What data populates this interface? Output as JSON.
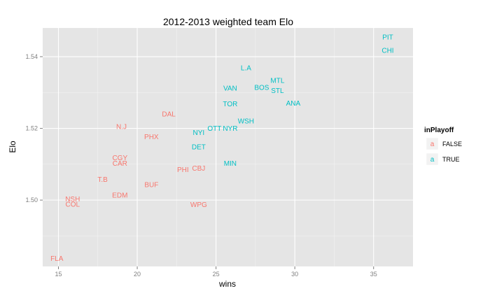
{
  "chart_data": {
    "type": "scatter",
    "title": "2012-2013 weighted team Elo",
    "xlabel": "wins",
    "ylabel": "Elo",
    "xlim": [
      14,
      37.5
    ],
    "ylim": [
      1.4815,
      1.548
    ],
    "x_ticks": [
      15,
      20,
      25,
      30,
      35
    ],
    "x_tick_labels": [
      "15",
      "20",
      "25",
      "30",
      "35"
    ],
    "y_ticks": [
      1.5,
      1.52,
      1.54
    ],
    "y_tick_labels": [
      "1.50",
      "1.52",
      "1.54"
    ],
    "grid": true,
    "legend": {
      "title": "inPlayoff",
      "position": "right",
      "key_glyph": "a",
      "entries": [
        {
          "label": "FALSE",
          "color": "#F8766D"
        },
        {
          "label": "TRUE",
          "color": "#00BFC4"
        }
      ]
    },
    "series": [
      {
        "name": "FALSE",
        "color": "#F8766D",
        "points": [
          {
            "label": "FLA",
            "x": 14.9,
            "y": 1.4837
          },
          {
            "label": "NSH",
            "x": 15.9,
            "y": 1.5003
          },
          {
            "label": "COL",
            "x": 15.9,
            "y": 1.4989
          },
          {
            "label": "T.B",
            "x": 17.8,
            "y": 1.5058
          },
          {
            "label": "EDM",
            "x": 18.9,
            "y": 1.5014
          },
          {
            "label": "CGY",
            "x": 18.9,
            "y": 1.5118
          },
          {
            "label": "CAR",
            "x": 18.9,
            "y": 1.5103
          },
          {
            "label": "N.J",
            "x": 19.0,
            "y": 1.5205
          },
          {
            "label": "BUF",
            "x": 20.9,
            "y": 1.5043
          },
          {
            "label": "PHX",
            "x": 20.9,
            "y": 1.5177
          },
          {
            "label": "DAL",
            "x": 22.0,
            "y": 1.524
          },
          {
            "label": "PHI",
            "x": 22.9,
            "y": 1.5085
          },
          {
            "label": "CBJ",
            "x": 23.9,
            "y": 1.5089
          },
          {
            "label": "WPG",
            "x": 23.9,
            "y": 1.4988
          }
        ]
      },
      {
        "name": "TRUE",
        "color": "#00BFC4",
        "points": [
          {
            "label": "NYI",
            "x": 23.9,
            "y": 1.5188
          },
          {
            "label": "DET",
            "x": 23.9,
            "y": 1.5148
          },
          {
            "label": "OTT",
            "x": 24.9,
            "y": 1.52
          },
          {
            "label": "NYR",
            "x": 25.9,
            "y": 1.52
          },
          {
            "label": "MIN",
            "x": 25.9,
            "y": 1.5103
          },
          {
            "label": "TOR",
            "x": 25.9,
            "y": 1.5268
          },
          {
            "label": "VAN",
            "x": 25.9,
            "y": 1.5312
          },
          {
            "label": "WSH",
            "x": 26.9,
            "y": 1.5221
          },
          {
            "label": "L.A",
            "x": 26.9,
            "y": 1.5369
          },
          {
            "label": "BOS",
            "x": 27.9,
            "y": 1.5314
          },
          {
            "label": "MTL",
            "x": 28.9,
            "y": 1.5334
          },
          {
            "label": "STL",
            "x": 28.9,
            "y": 1.5305
          },
          {
            "label": "ANA",
            "x": 29.9,
            "y": 1.527
          },
          {
            "label": "PIT",
            "x": 35.9,
            "y": 1.5455
          },
          {
            "label": "CHI",
            "x": 35.9,
            "y": 1.5418
          }
        ]
      }
    ]
  }
}
